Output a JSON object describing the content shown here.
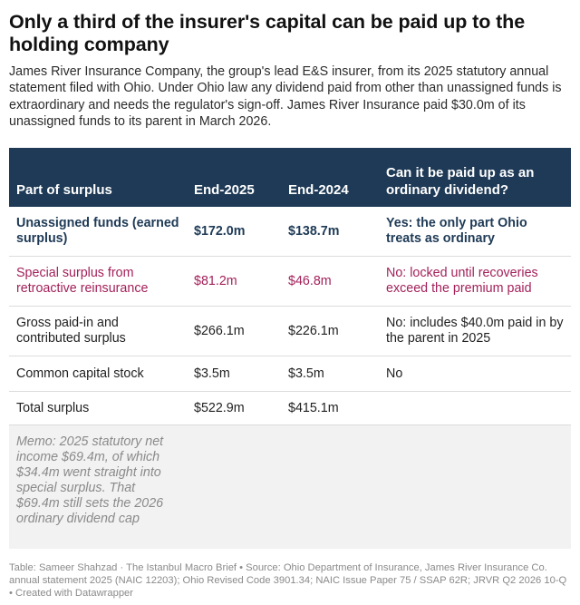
{
  "title": "Only a third of the insurer's capital can be paid up to the holding company",
  "subtitle": "James River Insurance Company, the group's lead E&S insurer, from its 2025 statutory annual statement filed with Ohio. Under Ohio law any dividend paid from other than unassigned funds is extraordinary and needs the regulator's sign-off. James River Insurance paid $30.0m of its unassigned funds to its parent in March 2026.",
  "table": {
    "headers": [
      "Part of surplus",
      "End-2025",
      "End-2024",
      "Can it be paid up as an ordinary dividend?"
    ],
    "rows": [
      {
        "part": "Unassigned funds (earned surplus)",
        "end2025": "$172.0m",
        "end2024": "$138.7m",
        "ordinary": "Yes: the only part Ohio treats as ordinary"
      },
      {
        "part": "Special surplus from retroactive reinsurance",
        "end2025": "$81.2m",
        "end2024": "$46.8m",
        "ordinary": "No: locked until recoveries exceed the premium paid"
      },
      {
        "part": "Gross paid-in and contributed surplus",
        "end2025": "$266.1m",
        "end2024": "$226.1m",
        "ordinary": "No: includes $40.0m paid in by the parent in 2025"
      },
      {
        "part": "Common capital stock",
        "end2025": "$3.5m",
        "end2024": "$3.5m",
        "ordinary": "No"
      },
      {
        "part": "Total surplus",
        "end2025": "$522.9m",
        "end2024": "$415.1m",
        "ordinary": ""
      }
    ],
    "memo": "Memo: 2025 statutory net income $69.4m, of which $34.4m went straight into special surplus. That $69.4m still sets the 2026 ordinary dividend cap"
  },
  "footer": "Table: Sameer Shahzad · The Istanbul Macro Brief • Source: Ohio Department of Insurance, James River Insurance Co. annual statement 2025 (NAIC 12203); Ohio Revised Code 3901.34; NAIC Issue Paper 75 / SSAP 62R; JRVR Q2 2026 10-Q • Created with Datawrapper",
  "colors": {
    "header_bg": "#1e3a56",
    "highlight_row": "#1e3a56",
    "special_row": "#a3215a",
    "memo_bg": "#f2f2f2"
  }
}
